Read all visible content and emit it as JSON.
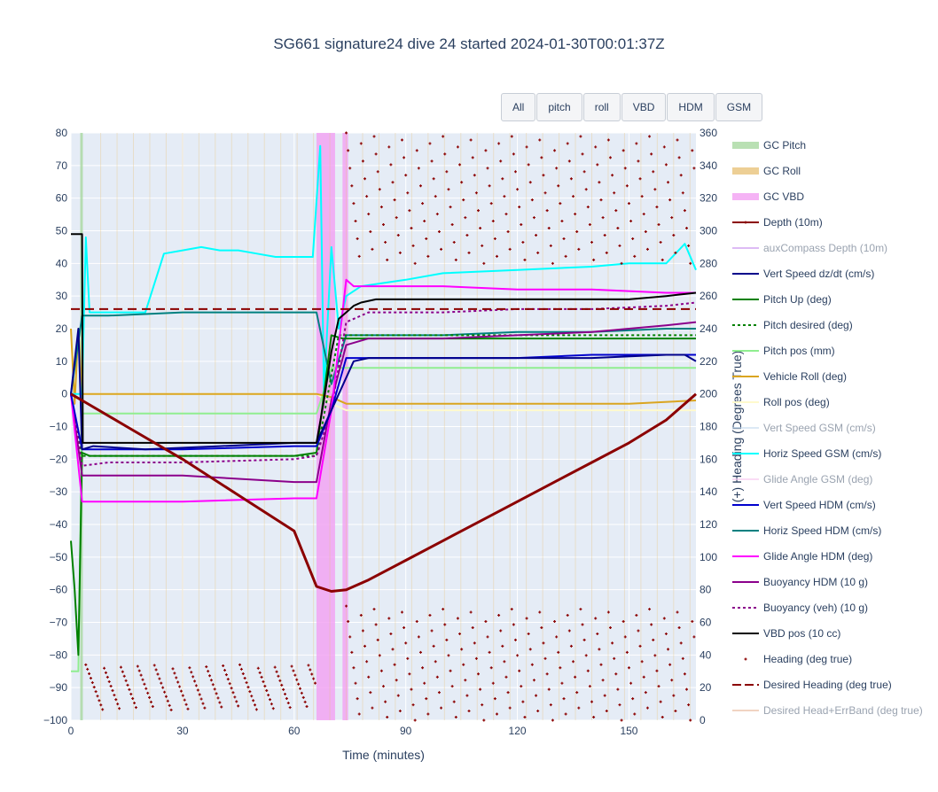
{
  "title": "SG661 signature24 dive 24 started 2024-01-30T00:01:37Z",
  "buttons": [
    "All",
    "pitch",
    "roll",
    "VBD",
    "HDM",
    "GSM"
  ],
  "chart_data": {
    "type": "line",
    "title": "SG661 signature24 dive 24 started 2024-01-30T00:01:37Z",
    "xlabel": "Time (minutes)",
    "ylabel": "",
    "y2label": "(+) Heading (Degrees True)",
    "xlim": [
      0,
      168
    ],
    "ylim": [
      -100,
      80
    ],
    "y2lim": [
      0,
      360
    ],
    "x_ticks": [
      0,
      30,
      60,
      90,
      120,
      150
    ],
    "y_ticks": [
      80,
      70,
      60,
      50,
      40,
      30,
      20,
      10,
      0,
      -10,
      -20,
      -30,
      -40,
      -50,
      -60,
      -70,
      -80,
      -90,
      -100
    ],
    "y2_ticks": [
      360,
      340,
      320,
      300,
      280,
      260,
      240,
      220,
      200,
      180,
      160,
      140,
      120,
      100,
      80,
      60,
      40,
      20,
      0
    ],
    "y_tick_labels": [
      "80",
      "70",
      "60",
      "50",
      "40",
      "30",
      "20",
      "10",
      "0",
      "−10",
      "−20",
      "−30",
      "−40",
      "−50",
      "−60",
      "−70",
      "−80",
      "−90",
      "−100"
    ],
    "grid": true,
    "legend_position": "right",
    "gc_vbd_spans": [
      [
        66,
        71
      ],
      [
        73,
        74.5
      ]
    ],
    "gc_pitch_spans": [
      [
        2.5,
        3.2
      ]
    ],
    "series": [
      {
        "name": "GC Pitch",
        "color": "#a8d8a0",
        "style": "band"
      },
      {
        "name": "GC Roll",
        "color": "#e8c37a",
        "style": "band"
      },
      {
        "name": "GC VBD",
        "color": "#f3a0f3",
        "style": "band"
      },
      {
        "name": "Depth (10m)",
        "color": "#8b0000",
        "style": "line-marker",
        "x": [
          0,
          3,
          15,
          30,
          45,
          60,
          66,
          70,
          74,
          80,
          90,
          100,
          110,
          120,
          130,
          140,
          150,
          160,
          168
        ],
        "y": [
          0,
          -2,
          -10,
          -20,
          -31,
          -42,
          -59,
          -60.5,
          -60,
          -57,
          -51,
          -45,
          -39,
          -33,
          -27,
          -21,
          -15,
          -8,
          0
        ]
      },
      {
        "name": "auxCompass Depth (10m)",
        "color": "#c88ef0",
        "style": "line",
        "hidden": true
      },
      {
        "name": "Vert Speed dz/dt (cm/s)",
        "color": "#00008b",
        "style": "line",
        "x": [
          0,
          2,
          3,
          6,
          20,
          40,
          60,
          66,
          70,
          74,
          76,
          80,
          100,
          120,
          140,
          160,
          165,
          168
        ],
        "y": [
          0,
          20,
          -17,
          -16,
          -17,
          -16,
          -15,
          -15,
          -5,
          5,
          10,
          11,
          11,
          11,
          11,
          12,
          12,
          10
        ]
      },
      {
        "name": "Pitch Up (deg)",
        "color": "#008000",
        "style": "line",
        "x": [
          0,
          1,
          2,
          3,
          5,
          20,
          40,
          60,
          66,
          70,
          73,
          76,
          80,
          100,
          120,
          140,
          160,
          168
        ],
        "y": [
          -45,
          -60,
          -80,
          -18,
          -19,
          -19,
          -19,
          -19,
          -18,
          18,
          17,
          17,
          17,
          17,
          17,
          17,
          17,
          17
        ]
      },
      {
        "name": "Pitch desired (deg)",
        "color": "#008000",
        "style": "dotted",
        "x": [
          0,
          3,
          20,
          40,
          60,
          66,
          72,
          76,
          100,
          120,
          140,
          168
        ],
        "y": [
          0,
          -19,
          -19,
          -19,
          -19,
          -19,
          18,
          18,
          18,
          18,
          18,
          18
        ]
      },
      {
        "name": "Pitch pos (mm)",
        "color": "#90ee90",
        "style": "line",
        "x": [
          0,
          2,
          3,
          5,
          20,
          40,
          60,
          66,
          70,
          74,
          80,
          100,
          120,
          140,
          160,
          168
        ],
        "y": [
          -85,
          -85,
          -6,
          -6,
          -6,
          -6,
          -6,
          -6,
          8,
          8,
          8,
          8,
          8,
          8,
          8,
          8
        ]
      },
      {
        "name": "Vehicle Roll (deg)",
        "color": "#daa520",
        "style": "line",
        "x": [
          0,
          1,
          2,
          3,
          10,
          30,
          60,
          66,
          70,
          74,
          90,
          120,
          150,
          168
        ],
        "y": [
          20,
          -3,
          20,
          0,
          0,
          0,
          0,
          0,
          -1,
          -3,
          -3,
          -3,
          -3,
          -2
        ]
      },
      {
        "name": "Roll pos (deg)",
        "color": "#fffacd",
        "style": "line",
        "x": [
          0,
          3,
          10,
          30,
          60,
          66,
          70,
          74,
          90,
          120,
          150,
          168
        ],
        "y": [
          0,
          0,
          0,
          0,
          0,
          0,
          -3,
          -5,
          -5,
          -5,
          -5,
          -5
        ]
      },
      {
        "name": "Vert Speed GSM (cm/s)",
        "color": "#c6dbef",
        "style": "line",
        "hidden": true
      },
      {
        "name": "Horiz Speed GSM (cm/s)",
        "color": "#00ffff",
        "style": "line",
        "x": [
          0,
          3,
          4,
          5,
          10,
          20,
          25,
          30,
          35,
          40,
          45,
          50,
          55,
          60,
          65,
          67,
          68,
          70,
          72,
          74,
          78,
          90,
          100,
          120,
          140,
          150,
          160,
          165,
          168
        ],
        "y": [
          0,
          0,
          48,
          25,
          25,
          25,
          43,
          44,
          45,
          44,
          44,
          43,
          42,
          42,
          42,
          76,
          0,
          45,
          20,
          30,
          33,
          35,
          37,
          38,
          39,
          40,
          40,
          46,
          38
        ]
      },
      {
        "name": "Glide Angle GSM (deg)",
        "color": "#f7c6f0",
        "style": "line",
        "hidden": true
      },
      {
        "name": "Vert Speed HDM (cm/s)",
        "color": "#0000cd",
        "style": "line",
        "x": [
          0,
          3,
          10,
          30,
          60,
          66,
          70,
          74,
          80,
          100,
          120,
          140,
          160,
          168
        ],
        "y": [
          0,
          -17,
          -17,
          -17,
          -16,
          -16,
          -5,
          11,
          11,
          11,
          11,
          12,
          12,
          12
        ]
      },
      {
        "name": "Horiz Speed HDM (cm/s)",
        "color": "#008080",
        "style": "line",
        "x": [
          0,
          3,
          10,
          30,
          60,
          66,
          70,
          74,
          80,
          100,
          120,
          140,
          160,
          168
        ],
        "y": [
          0,
          24,
          24,
          25,
          25,
          25,
          3,
          18,
          18,
          18,
          19,
          19,
          20,
          20
        ]
      },
      {
        "name": "Glide Angle HDM (deg)",
        "color": "#ff00ff",
        "style": "line",
        "x": [
          0,
          3,
          5,
          10,
          30,
          60,
          66,
          70,
          74,
          76,
          80,
          100,
          120,
          140,
          160,
          168
        ],
        "y": [
          0,
          -33,
          -33,
          -33,
          -33,
          -32,
          -32,
          -5,
          35,
          33,
          33,
          33,
          32,
          32,
          31,
          31
        ]
      },
      {
        "name": "Buoyancy HDM (10 g)",
        "color": "#8b008b",
        "style": "line",
        "x": [
          0,
          3,
          5,
          10,
          30,
          60,
          66,
          70,
          74,
          80,
          100,
          120,
          140,
          160,
          168
        ],
        "y": [
          0,
          -25,
          -25,
          -25,
          -25,
          -27,
          -27,
          -2,
          15,
          17,
          17,
          18,
          19,
          21,
          22
        ]
      },
      {
        "name": "Buoyancy (veh) (10 g)",
        "color": "#8b008b",
        "style": "dotted",
        "x": [
          0,
          3,
          10,
          30,
          60,
          66,
          70,
          74,
          80,
          100,
          120,
          140,
          160,
          168
        ],
        "y": [
          0,
          -22,
          -21,
          -21,
          -20,
          -19,
          -5,
          22,
          25,
          25,
          26,
          26,
          27,
          28
        ]
      },
      {
        "name": "VBD pos (10 cc)",
        "color": "#000000",
        "style": "line",
        "x": [
          0,
          3,
          3.2,
          10,
          30,
          60,
          66,
          68,
          70,
          72,
          74,
          76,
          78,
          82,
          100,
          130,
          150,
          160,
          168
        ],
        "y": [
          49,
          49,
          -15,
          -15,
          -15,
          -15,
          -15,
          -2,
          13,
          23,
          25,
          27,
          28,
          29,
          29,
          29,
          29,
          30,
          31
        ]
      },
      {
        "name": "Heading (deg true)",
        "color": "#8b0000",
        "style": "markers"
      },
      {
        "name": "Desired Heading (deg true)",
        "color": "#8b0000",
        "style": "dashed",
        "x": [
          0,
          168
        ],
        "y": [
          252,
          252
        ]
      },
      {
        "name": "Desired Head+ErrBand (deg true)",
        "color": "#e8b89a",
        "style": "line",
        "hidden": true
      }
    ]
  }
}
